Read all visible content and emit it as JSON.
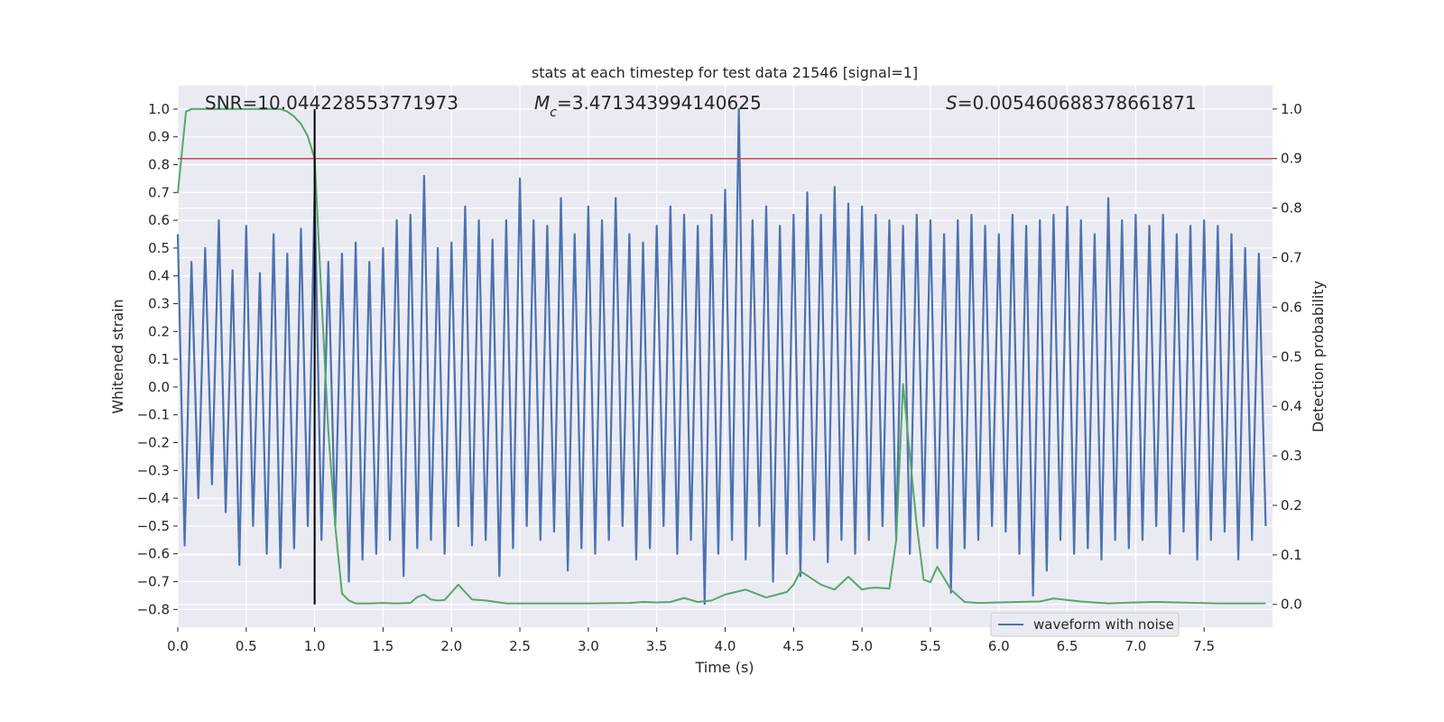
{
  "chart_data": {
    "type": "line",
    "title": "stats at each timestep for test data 21546 [signal=1]",
    "x_label": "Time (s)",
    "y_label": "Whitened strain",
    "y2_label": "Detection probability",
    "annotations": [
      {
        "parts": [
          "SNR=10.044228553771973"
        ]
      },
      {
        "parts": [
          "M",
          "c",
          "=3.471343994140625"
        ]
      },
      {
        "parts": [
          "S",
          "=0.005460688378661871"
        ]
      }
    ],
    "xlim": [
      0,
      8.0
    ],
    "xticks": [
      {
        "value": 0,
        "label": "0.0"
      },
      {
        "value": 0.5,
        "label": "0.5"
      },
      {
        "value": 1,
        "label": "1.0"
      },
      {
        "value": 1.5,
        "label": "1.5"
      },
      {
        "value": 2,
        "label": "2.0"
      },
      {
        "value": 2.5,
        "label": "2.5"
      },
      {
        "value": 3,
        "label": "3.0"
      },
      {
        "value": 3.5,
        "label": "3.5"
      },
      {
        "value": 4,
        "label": "4.0"
      },
      {
        "value": 4.5,
        "label": "4.5"
      },
      {
        "value": 5,
        "label": "5.0"
      },
      {
        "value": 5.5,
        "label": "5.5"
      },
      {
        "value": 6,
        "label": "6.0"
      },
      {
        "value": 6.5,
        "label": "6.5"
      },
      {
        "value": 7,
        "label": "7.0"
      },
      {
        "value": 7.5,
        "label": "7.5"
      }
    ],
    "ylim": [
      -0.864,
      1.084
    ],
    "yticks": [
      {
        "value": -0.8,
        "label": "−0.8"
      },
      {
        "value": -0.7,
        "label": "−0.7"
      },
      {
        "value": -0.6,
        "label": "−0.6"
      },
      {
        "value": -0.5,
        "label": "−0.5"
      },
      {
        "value": -0.4,
        "label": "−0.4"
      },
      {
        "value": -0.3,
        "label": "−0.3"
      },
      {
        "value": -0.2,
        "label": "−0.2"
      },
      {
        "value": -0.1,
        "label": "−0.1"
      },
      {
        "value": 0,
        "label": "0.0"
      },
      {
        "value": 0.1,
        "label": "0.1"
      },
      {
        "value": 0.2,
        "label": "0.2"
      },
      {
        "value": 0.3,
        "label": "0.3"
      },
      {
        "value": 0.4,
        "label": "0.4"
      },
      {
        "value": 0.5,
        "label": "0.5"
      },
      {
        "value": 0.6,
        "label": "0.6"
      },
      {
        "value": 0.7,
        "label": "0.7"
      },
      {
        "value": 0.8,
        "label": "0.8"
      },
      {
        "value": 0.9,
        "label": "0.9"
      },
      {
        "value": 1,
        "label": "1.0"
      }
    ],
    "y2lim": [
      -0.046,
      1.047
    ],
    "y2ticks": [
      {
        "value": 0,
        "label": "0.0"
      },
      {
        "value": 0.1,
        "label": "0.1"
      },
      {
        "value": 0.2,
        "label": "0.2"
      },
      {
        "value": 0.3,
        "label": "0.3"
      },
      {
        "value": 0.4,
        "label": "0.4"
      },
      {
        "value": 0.5,
        "label": "0.5"
      },
      {
        "value": 0.6,
        "label": "0.6"
      },
      {
        "value": 0.7,
        "label": "0.7"
      },
      {
        "value": 0.8,
        "label": "0.8"
      },
      {
        "value": 0.9,
        "label": "0.9"
      },
      {
        "value": 1,
        "label": "1.0"
      }
    ],
    "grid": true,
    "legend": "lower right",
    "series": [
      {
        "name": "waveform with noise",
        "color": "#4c72b0",
        "x": [
          0,
          0.05,
          0.1,
          0.15,
          0.2,
          0.25,
          0.3,
          0.35,
          0.4,
          0.45,
          0.5,
          0.55,
          0.6,
          0.65,
          0.7,
          0.75,
          0.8,
          0.85,
          0.9,
          0.95,
          1,
          1.05,
          1.1,
          1.15,
          1.2,
          1.25,
          1.3,
          1.35,
          1.4,
          1.45,
          1.5,
          1.55,
          1.6,
          1.65,
          1.7,
          1.75,
          1.8,
          1.85,
          1.9,
          1.95,
          2,
          2.05,
          2.1,
          2.15,
          2.2,
          2.25,
          2.3,
          2.35,
          2.4,
          2.45,
          2.5,
          2.55,
          2.6,
          2.65,
          2.7,
          2.75,
          2.8,
          2.85,
          2.9,
          2.95,
          3,
          3.05,
          3.1,
          3.15,
          3.2,
          3.25,
          3.3,
          3.35,
          3.4,
          3.45,
          3.5,
          3.55,
          3.6,
          3.65,
          3.7,
          3.75,
          3.8,
          3.85,
          3.9,
          3.95,
          4,
          4.05,
          4.1,
          4.15,
          4.2,
          4.25,
          4.3,
          4.35,
          4.4,
          4.45,
          4.5,
          4.55,
          4.6,
          4.65,
          4.7,
          4.75,
          4.8,
          4.85,
          4.9,
          4.95,
          5,
          5.05,
          5.1,
          5.15,
          5.2,
          5.25,
          5.3,
          5.35,
          5.4,
          5.45,
          5.5,
          5.55,
          5.6,
          5.65,
          5.7,
          5.75,
          5.8,
          5.85,
          5.9,
          5.95,
          6,
          6.05,
          6.1,
          6.15,
          6.2,
          6.25,
          6.3,
          6.35,
          6.4,
          6.45,
          6.5,
          6.55,
          6.6,
          6.65,
          6.7,
          6.75,
          6.8,
          6.85,
          6.9,
          6.95,
          7,
          7.05,
          7.1,
          7.15,
          7.2,
          7.25,
          7.3,
          7.35,
          7.4,
          7.45,
          7.5,
          7.55,
          7.6,
          7.65,
          7.7,
          7.75,
          7.8,
          7.85,
          7.9,
          7.95
        ],
        "values": [
          0.55,
          -0.57,
          0.45,
          -0.4,
          0.5,
          -0.35,
          0.6,
          -0.45,
          0.42,
          -0.64,
          0.58,
          -0.5,
          0.41,
          -0.6,
          0.55,
          -0.65,
          0.48,
          -0.58,
          0.57,
          -0.5,
          0.7,
          -0.55,
          0.45,
          -0.5,
          0.48,
          -0.7,
          0.52,
          -0.62,
          0.45,
          -0.6,
          0.5,
          -0.55,
          0.6,
          -0.68,
          0.62,
          -0.58,
          0.76,
          -0.55,
          0.5,
          -0.6,
          0.52,
          -0.5,
          0.65,
          -0.57,
          0.6,
          -0.55,
          0.53,
          -0.68,
          0.6,
          -0.58,
          0.75,
          -0.5,
          0.6,
          -0.55,
          0.58,
          -0.52,
          0.68,
          -0.66,
          0.55,
          -0.58,
          0.65,
          -0.6,
          0.6,
          -0.55,
          0.68,
          -0.5,
          0.55,
          -0.62,
          0.52,
          -0.58,
          0.58,
          -0.5,
          0.65,
          -0.6,
          0.62,
          -0.55,
          0.58,
          -0.78,
          0.62,
          -0.6,
          0.71,
          -0.55,
          1.0,
          -0.62,
          0.6,
          -0.5,
          0.65,
          -0.7,
          0.58,
          -0.6,
          0.62,
          -0.68,
          0.7,
          -0.55,
          0.62,
          -0.63,
          0.72,
          -0.55,
          0.66,
          -0.6,
          0.65,
          -0.55,
          0.62,
          -0.5,
          0.6,
          -0.55,
          0.58,
          -0.6,
          0.62,
          -0.5,
          0.6,
          -0.58,
          0.55,
          -0.74,
          0.6,
          -0.58,
          0.62,
          -0.55,
          0.58,
          -0.5,
          0.55,
          -0.52,
          0.62,
          -0.6,
          0.58,
          -0.75,
          0.6,
          -0.66,
          0.62,
          -0.55,
          0.65,
          -0.6,
          0.6,
          -0.58,
          0.55,
          -0.62,
          0.68,
          -0.55,
          0.6,
          -0.58,
          0.62,
          -0.55,
          0.58,
          -0.5,
          0.62,
          -0.6,
          0.55,
          -0.52,
          0.58,
          -0.62,
          0.6,
          -0.55,
          0.58,
          -0.52,
          0.55,
          -0.62,
          0.5,
          -0.55,
          0.48,
          -0.5
        ]
      },
      {
        "color": "#55a868",
        "axis": "y2",
        "x": [
          0,
          0.06,
          0.1,
          0.2,
          0.3,
          0.4,
          0.5,
          0.6,
          0.7,
          0.75,
          0.8,
          0.85,
          0.9,
          0.95,
          1.0,
          1.05,
          1.1,
          1.15,
          1.2,
          1.25,
          1.3,
          1.4,
          1.5,
          1.6,
          1.7,
          1.75,
          1.8,
          1.85,
          1.9,
          1.95,
          2.05,
          2.15,
          2.25,
          2.4,
          2.6,
          3.0,
          3.3,
          3.4,
          3.5,
          3.6,
          3.7,
          3.8,
          3.9,
          4.0,
          4.15,
          4.3,
          4.45,
          4.5,
          4.55,
          4.7,
          4.8,
          4.9,
          5.0,
          5.05,
          5.1,
          5.2,
          5.25,
          5.3,
          5.35,
          5.4,
          5.45,
          5.5,
          5.55,
          5.65,
          5.75,
          5.85,
          6.0,
          6.3,
          6.4,
          6.6,
          6.8,
          7.0,
          7.15,
          7.3,
          7.6,
          7.95
        ],
        "values": [
          0.83,
          0.995,
          1.0,
          1.0,
          1.0,
          1.0,
          1.0,
          1.0,
          1.0,
          1.0,
          0.995,
          0.985,
          0.97,
          0.945,
          0.9,
          0.62,
          0.35,
          0.16,
          0.022,
          0.008,
          0.002,
          0.002,
          0.003,
          0.002,
          0.003,
          0.015,
          0.02,
          0.01,
          0.008,
          0.009,
          0.04,
          0.01,
          0.008,
          0.002,
          0.002,
          0.002,
          0.003,
          0.005,
          0.004,
          0.005,
          0.013,
          0.005,
          0.008,
          0.02,
          0.03,
          0.014,
          0.025,
          0.04,
          0.067,
          0.04,
          0.03,
          0.056,
          0.03,
          0.033,
          0.034,
          0.032,
          0.13,
          0.445,
          0.3,
          0.16,
          0.05,
          0.045,
          0.076,
          0.03,
          0.005,
          0.003,
          0.004,
          0.006,
          0.012,
          0.006,
          0.002,
          0.004,
          0.005,
          0.004,
          0.002,
          0.002
        ]
      }
    ],
    "hlines": [
      {
        "y": 0.9,
        "axis": "y2",
        "color": "#c44e52"
      }
    ],
    "vlines": [
      {
        "x": 1.0,
        "ymin": 0,
        "ymax": 1.0,
        "axis": "y2",
        "color": "#000000"
      }
    ]
  }
}
